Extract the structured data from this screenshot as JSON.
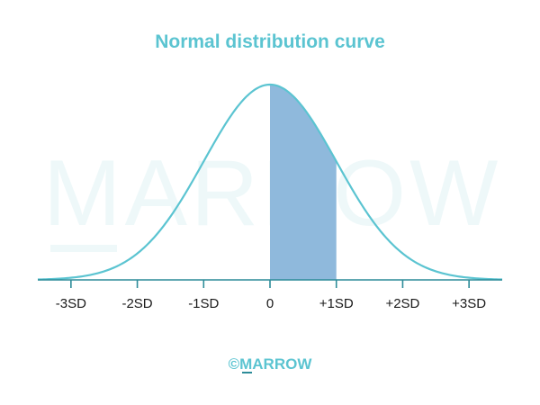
{
  "colors": {
    "accent": "#5bc4d1",
    "shade": "#8fb9dc",
    "axis": "#2d8c99",
    "watermark": "#eef8f9",
    "text": "#1a1a1a"
  },
  "chart_data": {
    "type": "area",
    "title": "Normal distribution curve",
    "xlabel": "",
    "ylabel": "",
    "xlim": [
      -3.5,
      3.5
    ],
    "distribution": "normal",
    "mean": 0,
    "sd": 1,
    "ticks": [
      {
        "value": -3,
        "label": "-3SD"
      },
      {
        "value": -2,
        "label": "-2SD"
      },
      {
        "value": -1,
        "label": "-1SD"
      },
      {
        "value": 0,
        "label": "0"
      },
      {
        "value": 1,
        "label": "+1SD"
      },
      {
        "value": 2,
        "label": "+2SD"
      },
      {
        "value": 3,
        "label": "+3SD"
      }
    ],
    "shaded_region": {
      "from": 0,
      "to": 1
    },
    "grid": false,
    "legend": "none"
  },
  "watermark": {
    "text": "MARROW"
  },
  "footer": {
    "logo_text": "©MARROW"
  }
}
